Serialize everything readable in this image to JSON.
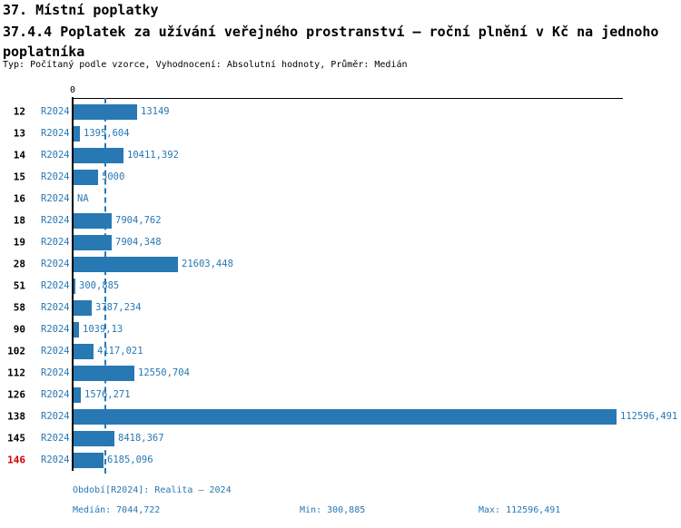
{
  "header": {
    "title": "37. Místní poplatky",
    "subtitle": "37.4.4 Poplatek za užívání veřejného prostranství – roční plnění v Kč na jednoho poplatníka",
    "meta": "Typ: Počítaný podle vzorce, Vyhodnocení: Absolutní hodnoty, Průměr: Medián"
  },
  "colors": {
    "bar": "#2878b4",
    "label_blue": "#2878b4",
    "highlight_red": "#d10000",
    "axis": "#000000"
  },
  "chart_data": {
    "type": "bar",
    "orientation": "horizontal",
    "title": "37.4.4 Poplatek za užívání veřejného prostranství – roční plnění v Kč na jednoho poplatníka",
    "value_unit": "Kč na jednoho poplatníka",
    "period_code": "R2024",
    "period_name": "Realita – 2024",
    "zero_tick_label": "0",
    "xlim": [
      0,
      114000
    ],
    "grid": false,
    "median_line_value": 7044.722,
    "categories": [
      "12",
      "13",
      "14",
      "15",
      "16",
      "18",
      "19",
      "28",
      "51",
      "58",
      "90",
      "102",
      "112",
      "126",
      "138",
      "145",
      "146"
    ],
    "values": [
      13149,
      1395.604,
      10411.392,
      5000,
      null,
      7904.762,
      7904.348,
      21603.448,
      300.885,
      3787.234,
      1039.13,
      4117.021,
      12550.704,
      1576.271,
      112596.491,
      8418.367,
      6185.096
    ],
    "value_labels": [
      "13149",
      "1395,604",
      "10411,392",
      "5000",
      "NA",
      "7904,762",
      "7904,348",
      "21603,448",
      "300,885",
      "3787,234",
      "1039,13",
      "4117,021",
      "12550,704",
      "1576,271",
      "112596,491",
      "8418,367",
      "6185,096"
    ],
    "highlighted_category": "146",
    "na_categories": [
      "16"
    ],
    "stats": {
      "median": 7044.722,
      "min": 300.885,
      "max": 112596.491
    }
  },
  "axis": {
    "zero_label": "0"
  },
  "footer": {
    "period_line": "Období[R2024]: Realita – 2024",
    "median_label": "Medián: 7044,722",
    "min_label": "Min: 300,885",
    "max_label": "Max: 112596,491"
  }
}
